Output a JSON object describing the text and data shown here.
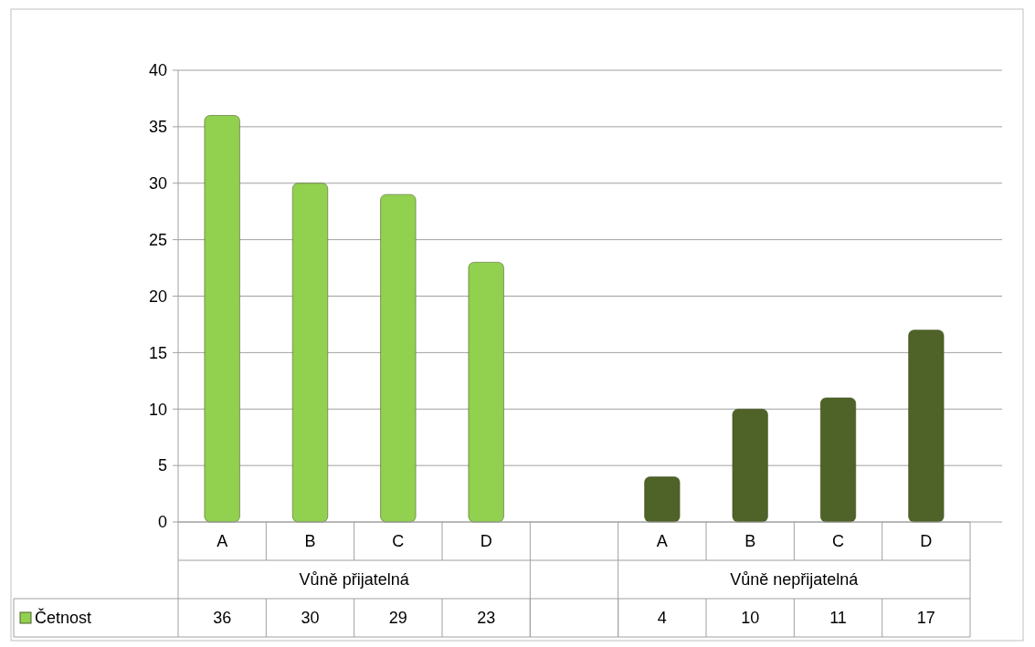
{
  "chart_data": {
    "type": "bar",
    "categories": [
      "A",
      "B",
      "C",
      "D",
      null,
      "A",
      "B",
      "C",
      "D"
    ],
    "series": [
      {
        "name": "Četnost",
        "color": "#92d050",
        "colors": [
          "#92d050",
          "#92d050",
          "#92d050",
          "#92d050",
          null,
          "#4f6228",
          "#4f6228",
          "#4f6228",
          "#4f6228"
        ],
        "values": [
          36,
          30,
          29,
          23,
          null,
          4,
          10,
          11,
          17
        ]
      }
    ],
    "annotations": [
      "Vůně přijatelná",
      "Vůně nepřijatelná"
    ],
    "ylim": [
      0,
      40
    ],
    "yticks": [
      0,
      5,
      10,
      15,
      20,
      25,
      30,
      35,
      40
    ],
    "grid": "y",
    "legend": "bottom left",
    "data_labels": true
  }
}
